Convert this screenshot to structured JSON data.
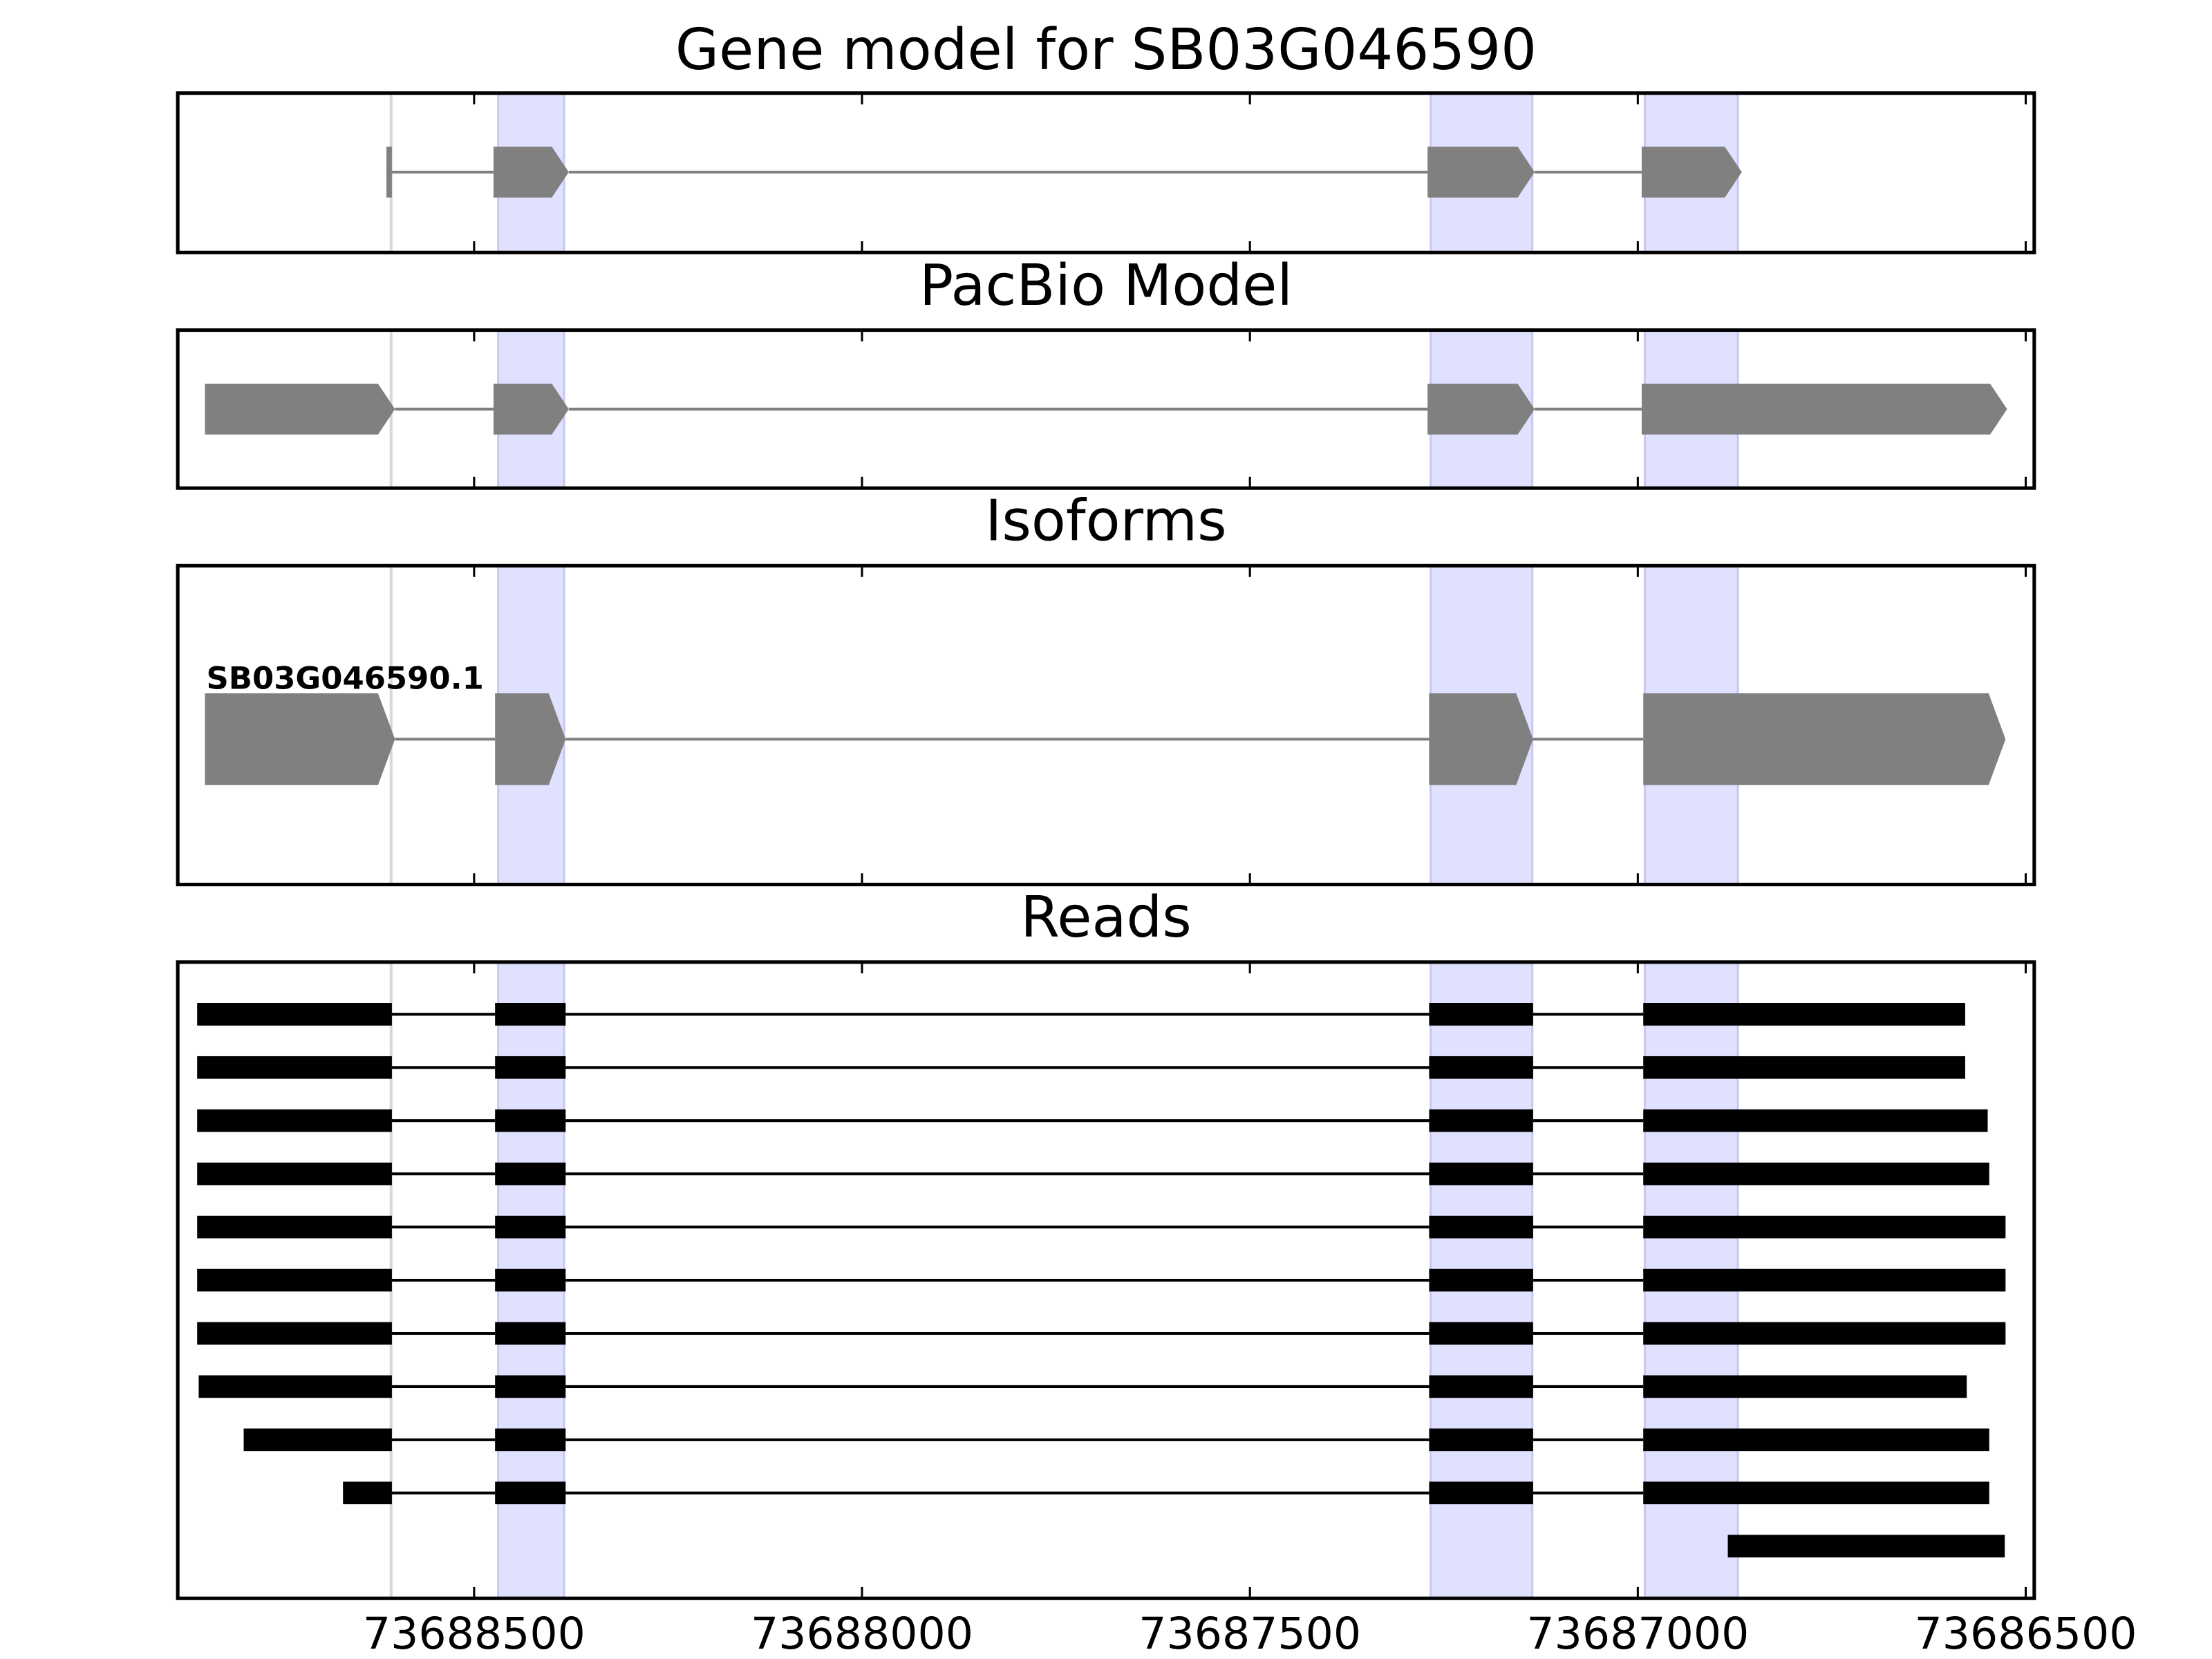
{
  "chart_data": [
    {
      "type": "gene_model",
      "title": "Gene model for SB03G046590",
      "color": "#808080",
      "xlim": [
        73688882,
        73686489
      ],
      "xticks": [
        73688500,
        73688000,
        73687500,
        73687000,
        73686500
      ],
      "show_tick_labels": false,
      "highlights": [
        [
          73688469,
          73688384
        ],
        [
          73687267,
          73687136
        ],
        [
          73686991,
          73686871
        ]
      ],
      "highlight_color": "#e0e0ff",
      "marker_lines": [
        73688607
      ],
      "marker_color": "#d8d8d8",
      "transcripts": [
        {
          "exons": [
            [
              73688613,
              73688606
            ],
            [
              73688475,
              73688378
            ],
            [
              73687271,
              73687133
            ],
            [
              73686995,
              73686866
            ]
          ]
        }
      ]
    },
    {
      "type": "gene_model",
      "title": "PacBio Model",
      "color": "#808080",
      "xlim": [
        73688882,
        73686489
      ],
      "xticks": [
        73688500,
        73688000,
        73687500,
        73687000,
        73686500
      ],
      "show_tick_labels": false,
      "highlights": [
        [
          73688469,
          73688384
        ],
        [
          73687267,
          73687136
        ],
        [
          73686991,
          73686871
        ]
      ],
      "highlight_color": "#e0e0ff",
      "marker_lines": [
        73688607
      ],
      "marker_color": "#d8d8d8",
      "transcripts": [
        {
          "exons": [
            [
              73688847,
              73688602
            ],
            [
              73688475,
              73688378
            ],
            [
              73687271,
              73687133
            ],
            [
              73686995,
              73686524
            ]
          ]
        }
      ]
    },
    {
      "type": "gene_model",
      "title": "Isoforms",
      "color": "#808080",
      "xlim": [
        73688882,
        73686489
      ],
      "xticks": [
        73688500,
        73688000,
        73687500,
        73687000,
        73686500
      ],
      "show_tick_labels": false,
      "highlights": [
        [
          73688469,
          73688384
        ],
        [
          73687267,
          73687136
        ],
        [
          73686991,
          73686871
        ]
      ],
      "highlight_color": "#e0e0ff",
      "marker_lines": [
        73688607
      ],
      "marker_color": "#d8d8d8",
      "transcripts": [
        {
          "name": "SB03G046590.1",
          "exons": [
            [
              73688847,
              73688602
            ],
            [
              73688473,
              73688382
            ],
            [
              73687269,
              73687135
            ],
            [
              73686993,
              73686526
            ]
          ]
        }
      ]
    },
    {
      "type": "reads",
      "title": "Reads",
      "color": "#000000",
      "xlim": [
        73688882,
        73686489
      ],
      "xticks": [
        73688500,
        73688000,
        73687500,
        73687000,
        73686500
      ],
      "show_tick_labels": true,
      "highlights": [
        [
          73688469,
          73688384
        ],
        [
          73687267,
          73687136
        ],
        [
          73686991,
          73686871
        ]
      ],
      "highlight_color": "#e0e0ff",
      "marker_lines": [
        73688607
      ],
      "marker_color": "#d8d8d8",
      "transcripts": [
        {
          "exons": [
            [
              73688857,
              73688606
            ],
            [
              73688473,
              73688382
            ],
            [
              73687269,
              73687135
            ],
            [
              73686993,
              73686578
            ]
          ]
        },
        {
          "exons": [
            [
              73688857,
              73688606
            ],
            [
              73688473,
              73688382
            ],
            [
              73687269,
              73687135
            ],
            [
              73686993,
              73686578
            ]
          ]
        },
        {
          "exons": [
            [
              73688857,
              73688606
            ],
            [
              73688473,
              73688382
            ],
            [
              73687269,
              73687135
            ],
            [
              73686993,
              73686549
            ]
          ]
        },
        {
          "exons": [
            [
              73688857,
              73688606
            ],
            [
              73688473,
              73688382
            ],
            [
              73687269,
              73687135
            ],
            [
              73686993,
              73686547
            ]
          ]
        },
        {
          "exons": [
            [
              73688857,
              73688606
            ],
            [
              73688473,
              73688382
            ],
            [
              73687269,
              73687135
            ],
            [
              73686993,
              73686526
            ]
          ]
        },
        {
          "exons": [
            [
              73688857,
              73688606
            ],
            [
              73688473,
              73688382
            ],
            [
              73687269,
              73687135
            ],
            [
              73686993,
              73686526
            ]
          ]
        },
        {
          "exons": [
            [
              73688857,
              73688606
            ],
            [
              73688473,
              73688382
            ],
            [
              73687269,
              73687135
            ],
            [
              73686993,
              73686526
            ]
          ]
        },
        {
          "exons": [
            [
              73688855,
              73688606
            ],
            [
              73688473,
              73688382
            ],
            [
              73687269,
              73687135
            ],
            [
              73686993,
              73686576
            ]
          ]
        },
        {
          "exons": [
            [
              73688797,
              73688606
            ],
            [
              73688473,
              73688382
            ],
            [
              73687269,
              73687135
            ],
            [
              73686993,
              73686547
            ]
          ]
        },
        {
          "exons": [
            [
              73688669,
              73688606
            ],
            [
              73688473,
              73688382
            ],
            [
              73687269,
              73687135
            ],
            [
              73686993,
              73686547
            ]
          ]
        },
        {
          "exons": [
            [
              73686884,
              73686527
            ]
          ]
        }
      ]
    }
  ]
}
